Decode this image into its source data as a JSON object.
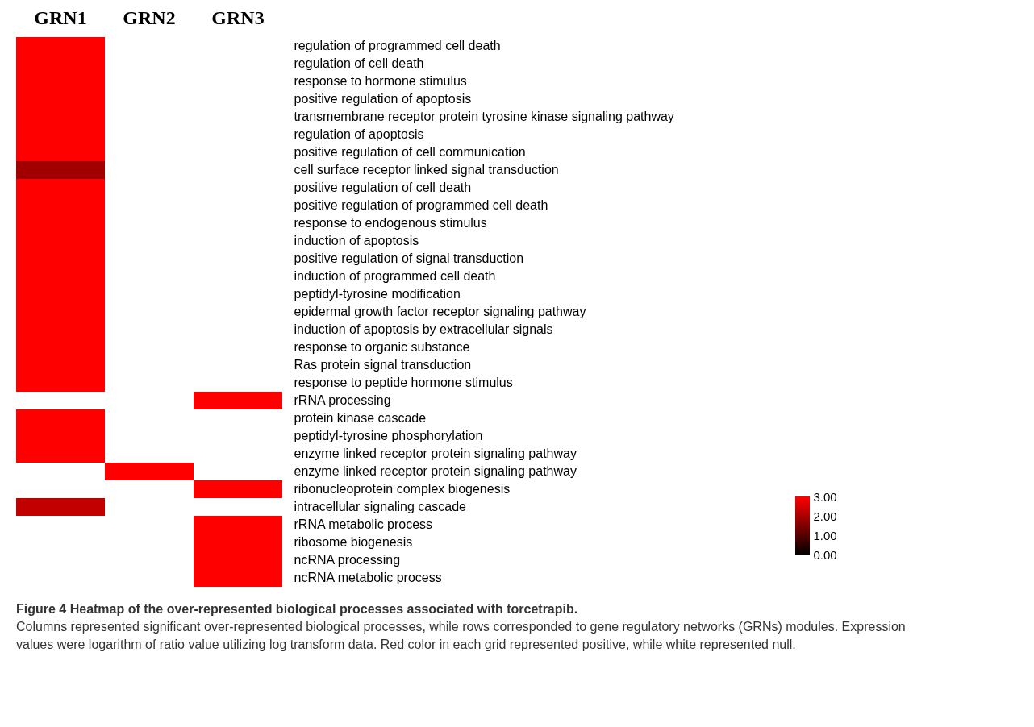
{
  "chart_data": {
    "type": "heatmap",
    "categories": [
      "GRN1",
      "GRN2",
      "GRN3"
    ],
    "y_categories": [
      "regulation of programmed cell death",
      "regulation of cell death",
      "response to hormone stimulus",
      "positive regulation of apoptosis",
      "transmembrane receptor protein tyrosine kinase signaling pathway",
      "regulation of apoptosis",
      "positive regulation of cell communication",
      "cell surface receptor linked signal transduction",
      "positive regulation of cell death",
      "positive regulation of programmed cell death",
      "response to endogenous stimulus",
      "induction of apoptosis",
      "positive regulation of signal transduction",
      "induction of programmed cell death",
      "peptidyl-tyrosine modification",
      "epidermal growth factor receptor signaling pathway",
      "induction of apoptosis by extracellular signals",
      "response to organic substance",
      "Ras protein signal transduction",
      "response to peptide hormone stimulus",
      "rRNA processing",
      "protein kinase cascade",
      "peptidyl-tyrosine phosphorylation",
      "enzyme linked receptor protein signaling pathway",
      "enzyme linked receptor protein signaling pathway",
      "ribonucleoprotein complex biogenesis",
      "intracellular signaling cascade",
      "rRNA metabolic process",
      "ribosome biogenesis",
      "ncRNA processing",
      "ncRNA metabolic process"
    ],
    "cells": [
      [
        3,
        null,
        null
      ],
      [
        3,
        null,
        null
      ],
      [
        3,
        null,
        null
      ],
      [
        3,
        null,
        null
      ],
      [
        3,
        null,
        null
      ],
      [
        3,
        null,
        null
      ],
      [
        3,
        null,
        null
      ],
      [
        1.9,
        null,
        null
      ],
      [
        3,
        null,
        null
      ],
      [
        3,
        null,
        null
      ],
      [
        3,
        null,
        null
      ],
      [
        3,
        null,
        null
      ],
      [
        3,
        null,
        null
      ],
      [
        3,
        null,
        null
      ],
      [
        3,
        null,
        null
      ],
      [
        3,
        null,
        null
      ],
      [
        3,
        null,
        null
      ],
      [
        3,
        null,
        null
      ],
      [
        3,
        null,
        null
      ],
      [
        3,
        null,
        null
      ],
      [
        null,
        null,
        3
      ],
      [
        3,
        null,
        null
      ],
      [
        3,
        null,
        null
      ],
      [
        3,
        null,
        null
      ],
      [
        null,
        3,
        null
      ],
      [
        null,
        null,
        3
      ],
      [
        2.3,
        null,
        null
      ],
      [
        null,
        null,
        3
      ],
      [
        null,
        null,
        3
      ],
      [
        null,
        null,
        3
      ],
      [
        null,
        null,
        3
      ]
    ],
    "clim": [
      0,
      3
    ],
    "cticks": [
      {
        "value": 0,
        "label": "0.00"
      },
      {
        "value": 1,
        "label": "1.00"
      },
      {
        "value": 2,
        "label": "2.00"
      },
      {
        "value": 3,
        "label": "3.00"
      }
    ],
    "grid": false,
    "annotations": [
      "Figure 4 Heatmap of the over-represented biological processes associated with torcetrapib.",
      "Columns represented significant over-represented biological processes, while rows corresponded to gene regulatory networks (GRNs) modules. Expression values were logarithm of ratio value utilizing log transform data. Red color in each grid represented positive, while white represented null."
    ]
  }
}
